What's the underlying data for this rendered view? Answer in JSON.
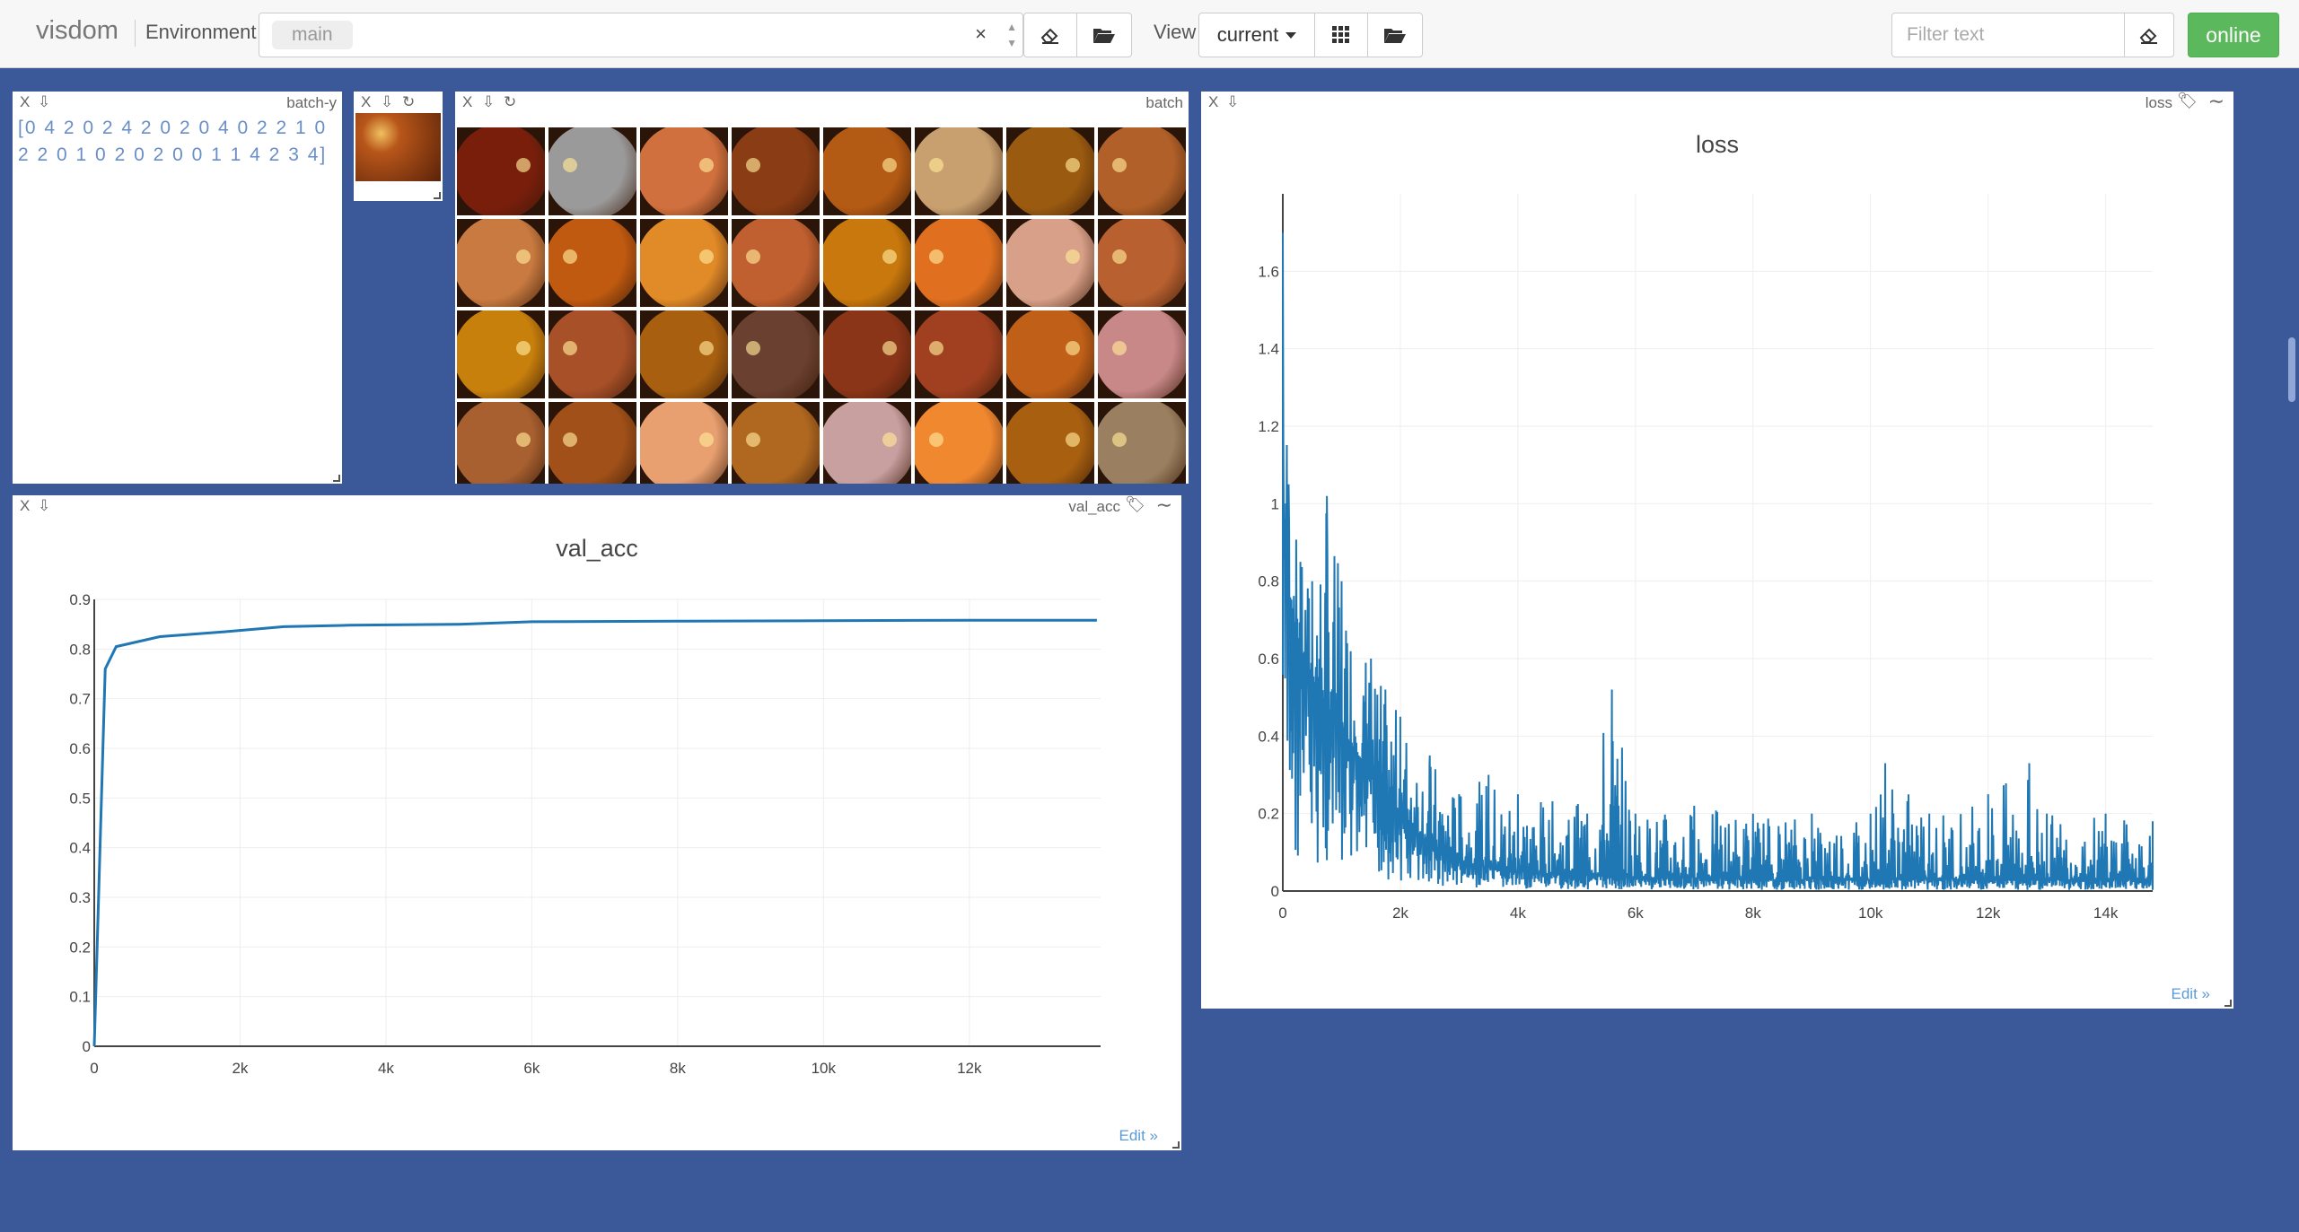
{
  "navbar": {
    "brand": "visdom",
    "environment_label": "Environment",
    "environment_tag": "main",
    "clear_symbol": "×",
    "view_label": "View",
    "view_value": "current",
    "filter_placeholder": "Filter text",
    "status": "online",
    "status_color": "#5cb85c"
  },
  "colors": {
    "background": "#3b5998",
    "line": "#1f77b4"
  },
  "panes": {
    "batch_y": {
      "title": "batch-y",
      "close": "X",
      "text": "[0 4 2 0 2 4 2 0 2 0 4 0 2 2 1 0 2 2 0 1 0 2 0 2 0 0 1 1 4 2 3 4]"
    },
    "single_image": {
      "close": "X"
    },
    "batch": {
      "title": "batch",
      "close": "X"
    },
    "val_acc": {
      "title": "val_acc",
      "close": "X",
      "edit": "Edit »"
    },
    "loss": {
      "title": "loss",
      "close": "X",
      "edit": "Edit »"
    }
  },
  "chart_data": [
    {
      "type": "line",
      "title": "val_acc",
      "xlabel": "",
      "ylabel": "",
      "xlim": [
        0,
        13800
      ],
      "ylim": [
        0,
        0.9
      ],
      "xticks": [
        "0",
        "2k",
        "4k",
        "6k",
        "8k",
        "10k",
        "12k"
      ],
      "yticks": [
        "0",
        "0.1",
        "0.2",
        "0.3",
        "0.4",
        "0.5",
        "0.6",
        "0.7",
        "0.8",
        "0.9"
      ],
      "grid": true,
      "series": [
        {
          "x": [
            0,
            150,
            300,
            900,
            1800,
            2600,
            3500,
            5000,
            6000,
            8000,
            10000,
            12000,
            13750
          ],
          "y": [
            0.0,
            0.76,
            0.805,
            0.825,
            0.835,
            0.845,
            0.848,
            0.85,
            0.855,
            0.856,
            0.857,
            0.858,
            0.858
          ]
        }
      ]
    },
    {
      "type": "line",
      "title": "loss",
      "xlabel": "",
      "ylabel": "",
      "xlim": [
        0,
        14800
      ],
      "ylim": [
        0,
        1.8
      ],
      "xticks": [
        "0",
        "2k",
        "4k",
        "6k",
        "8k",
        "10k",
        "12k",
        "14k"
      ],
      "yticks": [
        "0",
        "0.2",
        "0.4",
        "0.6",
        "0.8",
        "1",
        "1.2",
        "1.4",
        "1.6"
      ],
      "grid": true,
      "series": [
        {
          "x": [
            0,
            100,
            300,
            500,
            750,
            1000,
            1500,
            2000,
            2500,
            3000,
            3500,
            4000,
            5000,
            5600,
            6000,
            7000,
            8000,
            9000,
            10000,
            10250,
            11000,
            12000,
            12700,
            13000,
            14000,
            14800
          ],
          "y_mean": [
            1.0,
            0.78,
            0.62,
            0.55,
            0.48,
            0.42,
            0.3,
            0.2,
            0.12,
            0.08,
            0.06,
            0.05,
            0.04,
            0.04,
            0.035,
            0.035,
            0.03,
            0.03,
            0.03,
            0.03,
            0.03,
            0.03,
            0.03,
            0.03,
            0.03,
            0.03
          ],
          "y_peak": [
            1.7,
            1.05,
            0.85,
            0.8,
            1.02,
            0.8,
            0.6,
            0.45,
            0.35,
            0.25,
            0.3,
            0.25,
            0.22,
            0.52,
            0.2,
            0.22,
            0.2,
            0.2,
            0.2,
            0.33,
            0.2,
            0.25,
            0.33,
            0.2,
            0.2,
            0.18
          ]
        }
      ]
    }
  ],
  "image_grid": {
    "rows": 4,
    "cols": 8,
    "tones": [
      "#7a1e0c",
      "#9a9a9a",
      "#d0703e",
      "#8a3c14",
      "#b35a14",
      "#c8a070",
      "#9a5a10",
      "#b06028",
      "#c87a40",
      "#c05a10",
      "#e08a28",
      "#c06030",
      "#c8780c",
      "#e07020",
      "#d8a088",
      "#b86030",
      "#c8800c",
      "#a85028",
      "#a86010",
      "#6a4030",
      "#8a3418",
      "#a04020",
      "#c06018",
      "#c88888",
      "#a86030",
      "#a05018",
      "#e8a070",
      "#b06820",
      "#c8a0a0",
      "#f08830",
      "#a86010",
      "#9a8060"
    ],
    "single_tone": "#b8561a"
  }
}
